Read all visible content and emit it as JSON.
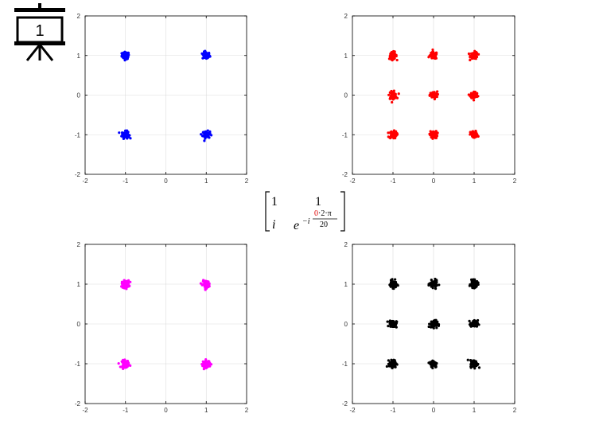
{
  "slide": {
    "number": "1",
    "icon": "presentation-board-icon"
  },
  "matrix": {
    "r1c1": "1",
    "r1c2": "1",
    "r2c1": "i",
    "base": "e",
    "exp_sign": "−i",
    "exp_num_red": "0",
    "exp_num_rest": "·2·π",
    "exp_den": "20",
    "highlight_color": "#e00000"
  },
  "chart_data": [
    {
      "type": "scatter",
      "title": "",
      "xlabel": "",
      "ylabel": "",
      "xlim": [
        -2,
        2
      ],
      "ylim": [
        -2,
        2
      ],
      "xticks": [
        "-2",
        "-1",
        "0",
        "1",
        "2"
      ],
      "yticks": [
        "2",
        "1",
        "0",
        "-1",
        "-2"
      ],
      "grid": true,
      "color": "#0000ff",
      "clusters": [
        [
          -1,
          1
        ],
        [
          1,
          1
        ],
        [
          -1,
          -1
        ],
        [
          1,
          -1
        ]
      ]
    },
    {
      "type": "scatter",
      "title": "",
      "xlabel": "",
      "ylabel": "",
      "xlim": [
        -2,
        2
      ],
      "ylim": [
        -2,
        2
      ],
      "xticks": [
        "-2",
        "-1",
        "0",
        "1",
        "2"
      ],
      "yticks": [
        "2",
        "1",
        "0",
        "-1",
        "-2"
      ],
      "grid": true,
      "color": "#ff0000",
      "clusters": [
        [
          -1,
          1
        ],
        [
          0,
          1
        ],
        [
          1,
          1
        ],
        [
          -1,
          0
        ],
        [
          0,
          0
        ],
        [
          1,
          0
        ],
        [
          -1,
          -1
        ],
        [
          0,
          -1
        ],
        [
          1,
          -1
        ]
      ]
    },
    {
      "type": "scatter",
      "title": "",
      "xlabel": "",
      "ylabel": "",
      "xlim": [
        -2,
        2
      ],
      "ylim": [
        -2,
        2
      ],
      "xticks": [
        "-2",
        "-1",
        "0",
        "1",
        "2"
      ],
      "yticks": [
        "2",
        "1",
        "0",
        "-1",
        "-2"
      ],
      "grid": true,
      "color": "#ff00ff",
      "clusters": [
        [
          -1,
          1
        ],
        [
          1,
          1
        ],
        [
          -1,
          -1
        ],
        [
          1,
          -1
        ]
      ]
    },
    {
      "type": "scatter",
      "title": "",
      "xlabel": "",
      "ylabel": "",
      "xlim": [
        -2,
        2
      ],
      "ylim": [
        -2,
        2
      ],
      "xticks": [
        "-2",
        "-1",
        "0",
        "1",
        "2"
      ],
      "yticks": [
        "2",
        "1",
        "0",
        "-1",
        "-2"
      ],
      "grid": true,
      "color": "#000000",
      "clusters": [
        [
          -1,
          1
        ],
        [
          0,
          1
        ],
        [
          1,
          1
        ],
        [
          -1,
          0
        ],
        [
          0,
          0
        ],
        [
          1,
          0
        ],
        [
          -1,
          -1
        ],
        [
          0,
          -1
        ],
        [
          1,
          -1
        ]
      ]
    }
  ]
}
